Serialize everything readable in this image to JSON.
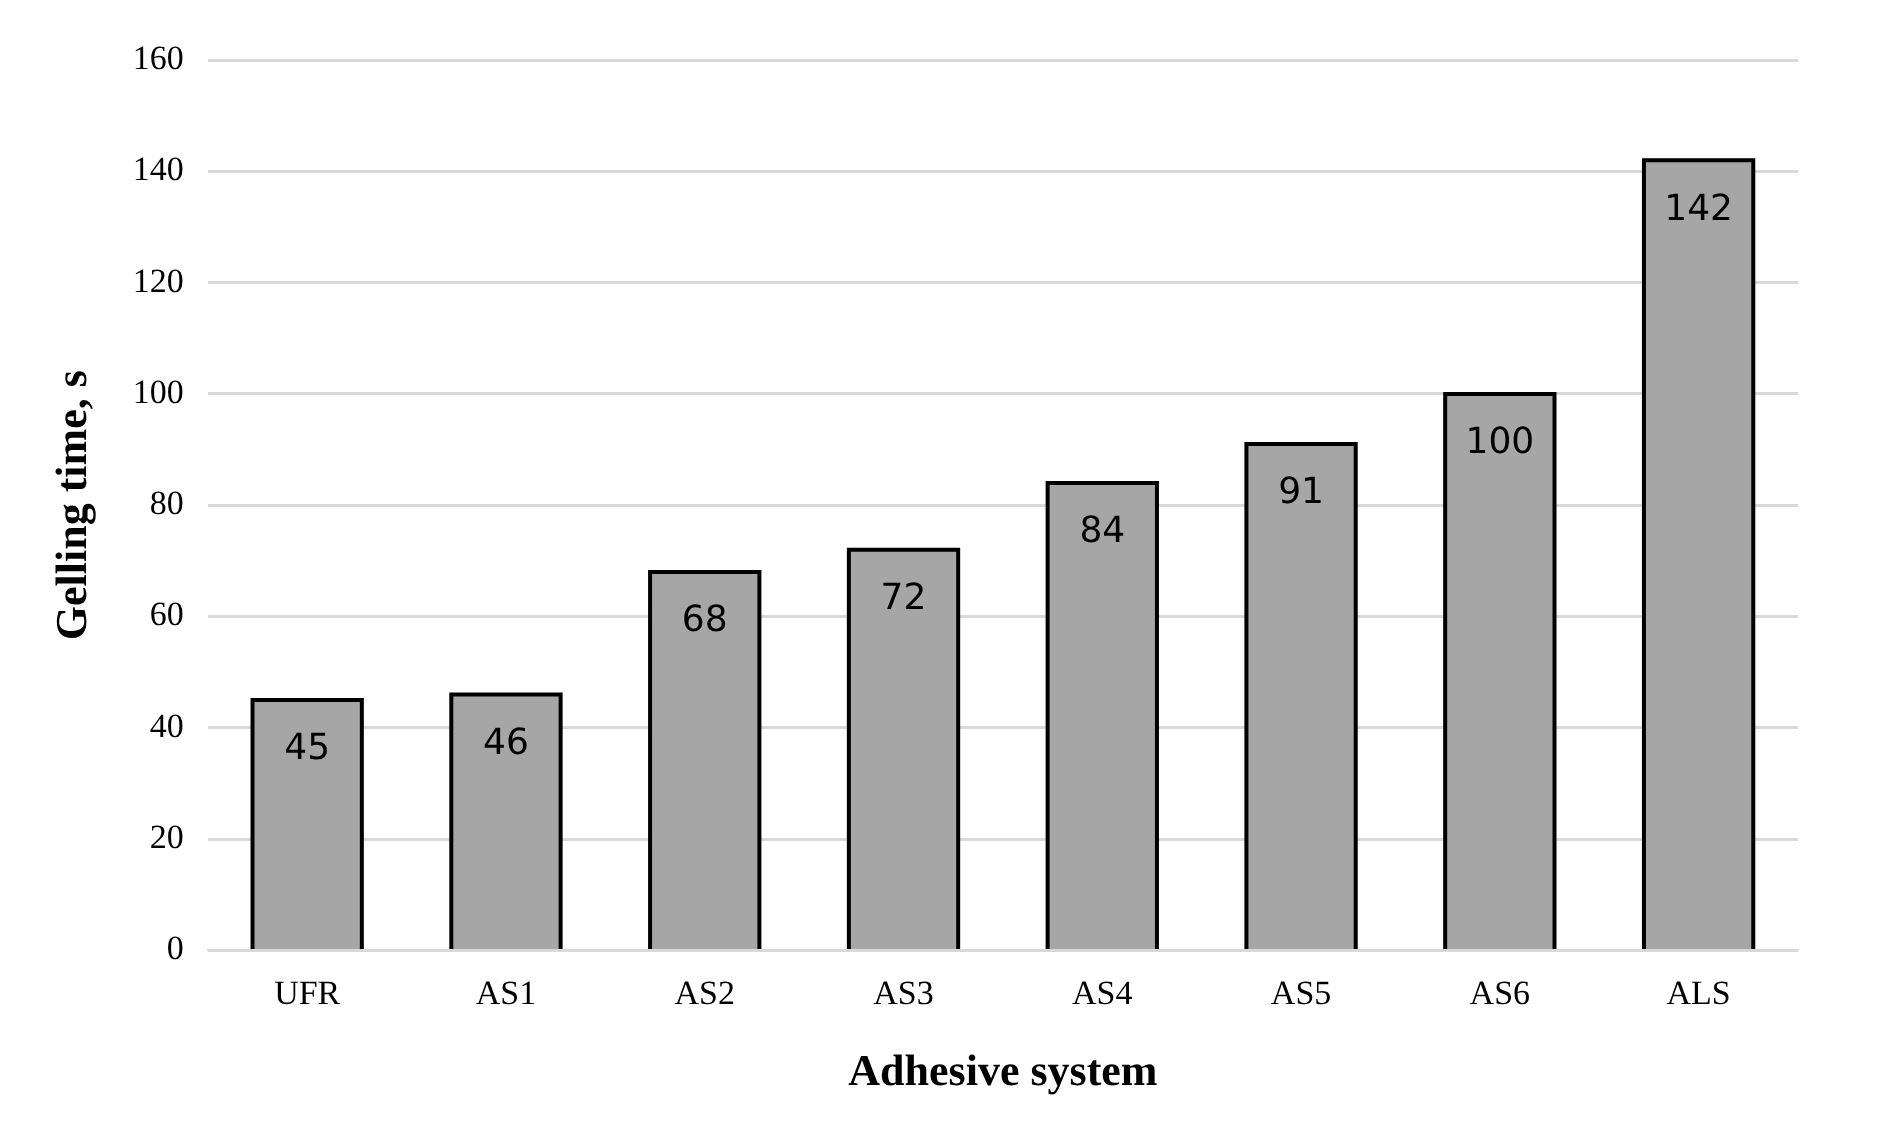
{
  "chart_data": {
    "type": "bar",
    "xlabel": "Adhesive system",
    "ylabel": "Gelling time, s",
    "categories": [
      "UFR",
      "AS1",
      "AS2",
      "AS3",
      "AS4",
      "AS5",
      "AS6",
      "ALS"
    ],
    "values": [
      45,
      46,
      68,
      72,
      84,
      91,
      100,
      142
    ],
    "color": "#a6a6a6",
    "ylim": [
      0,
      160
    ],
    "yticks": [
      0,
      20,
      40,
      60,
      80,
      100,
      120,
      140,
      160
    ],
    "grid": "y",
    "legend": false,
    "data_labels": true
  }
}
